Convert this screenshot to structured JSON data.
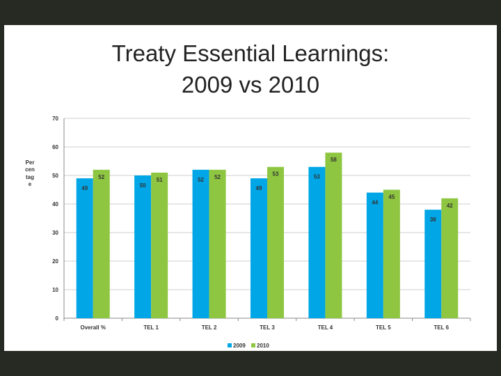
{
  "slide": {
    "title_line1": "Treaty Essential Learnings:",
    "title_line2": "2009 vs 2010"
  },
  "chart_data": {
    "type": "bar",
    "categories": [
      "Overall %",
      "TEL 1",
      "TEL 2",
      "TEL 3",
      "TEL 4",
      "TEL 5",
      "TEL 6"
    ],
    "series": [
      {
        "name": "2009",
        "color": "#00a6e6",
        "values": [
          49,
          50,
          52,
          49,
          53,
          44,
          38
        ]
      },
      {
        "name": "2010",
        "color": "#8ec641",
        "values": [
          52,
          51,
          52,
          53,
          58,
          45,
          42
        ]
      }
    ],
    "ylabel": "Percentage",
    "ylim": [
      0,
      70
    ],
    "yticks": [
      0,
      10,
      20,
      30,
      40,
      50,
      60,
      70
    ],
    "grid": true,
    "legend_position": "bottom"
  }
}
